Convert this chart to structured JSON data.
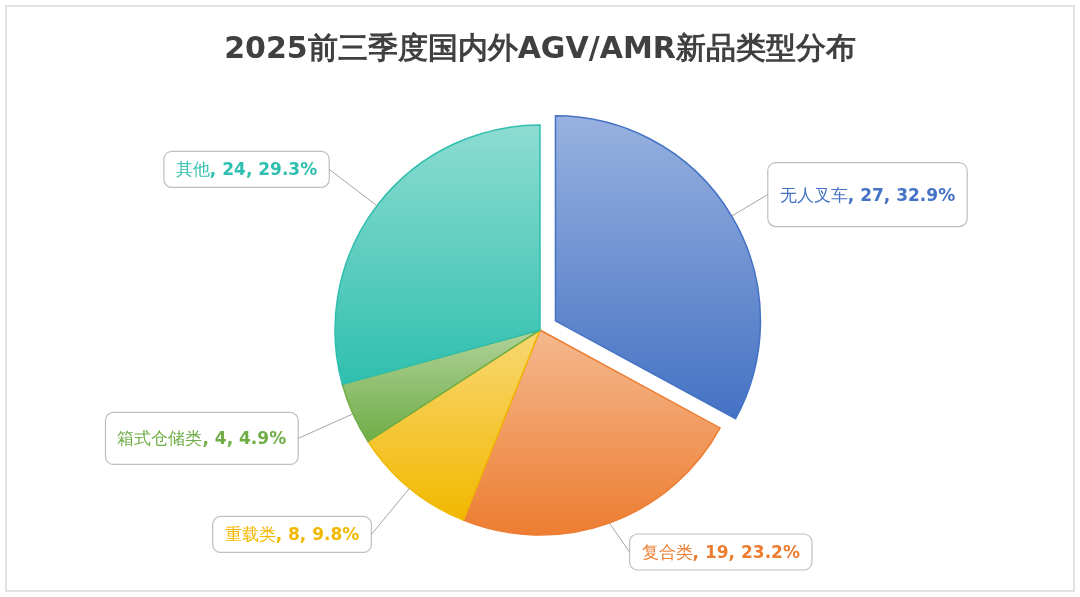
{
  "chart_data": {
    "type": "pie",
    "title": "2025前三季度国内外AGV/AMR新品类型分布",
    "categories": [
      "无人叉车",
      "复合类",
      "重载类",
      "箱式仓储类",
      "其他"
    ],
    "values": [
      27,
      19,
      8,
      4,
      24
    ],
    "value_labels": [
      ", 27, 32.9%",
      ", 19, 23.2%",
      ", 8, 9.8%",
      ", 4, 4.9%",
      ", 24, 29.3%"
    ],
    "colors": [
      "#4472c4",
      "#ed7d31",
      "#f2b800",
      "#70ad47",
      "#2fbfae"
    ]
  }
}
